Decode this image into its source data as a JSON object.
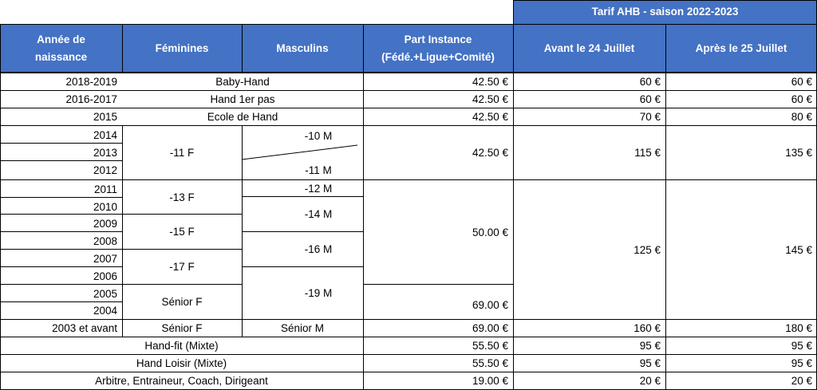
{
  "header": {
    "tarif_group": "Tarif AHB - saison 2022-2023",
    "annee": "Année de naissance",
    "feminines": "Féminines",
    "masculins": "Masculins",
    "part_instance": "Part Instance (Fédé.+Ligue+Comité)",
    "avant": "Avant le 24 Juillet",
    "apres": "Après le 25 Juillet"
  },
  "years": [
    "2018-2019",
    "2016-2017",
    "2015",
    "2014",
    "2013",
    "2012",
    "2011",
    "2010",
    "2009",
    "2008",
    "2007",
    "2006",
    "2005",
    "2004",
    "2003 et avant"
  ],
  "fem": {
    "u11": "-11 F",
    "u13": "-13 F",
    "u15": "-15 F",
    "u17": "-17 F",
    "senior_a": "Sénior F",
    "senior_b": "Sénior F"
  },
  "masc": {
    "u10": "-10 M",
    "u11": "-11 M",
    "u12": "-12 M",
    "u14": "-14 M",
    "u16": "-16 M",
    "u19": "-19 M",
    "senior": "Sénior M"
  },
  "merged": {
    "babyhand": "Baby-Hand",
    "hand1": "Hand 1er pas",
    "ecole": "Ecole de Hand",
    "handfit": "Hand-fit (Mixte)",
    "loisir": "Hand Loisir (Mixte)",
    "arbitre": "Arbitre, Entraineur, Coach, Dirigeant"
  },
  "part": {
    "p1": "42.50 €",
    "p2": "42.50 €",
    "p3": "42.50 €",
    "p4": "42.50 €",
    "p5": "50.00 €",
    "p6": "69.00 €",
    "p7": "69.00 €",
    "p8": "55.50 €",
    "p9": "55.50 €",
    "p10": "19.00 €"
  },
  "avant": {
    "a1": "60 €",
    "a2": "60 €",
    "a3": "70 €",
    "a4": "115 €",
    "a5": "125 €",
    "a6": "160 €",
    "a7": "95 €",
    "a8": "95 €",
    "a9": "20 €"
  },
  "apres": {
    "b1": "60 €",
    "b2": "60 €",
    "b3": "80 €",
    "b4": "135 €",
    "b5": "145 €",
    "b6": "180 €",
    "b7": "95 €",
    "b8": "95 €",
    "b9": "20 €"
  }
}
